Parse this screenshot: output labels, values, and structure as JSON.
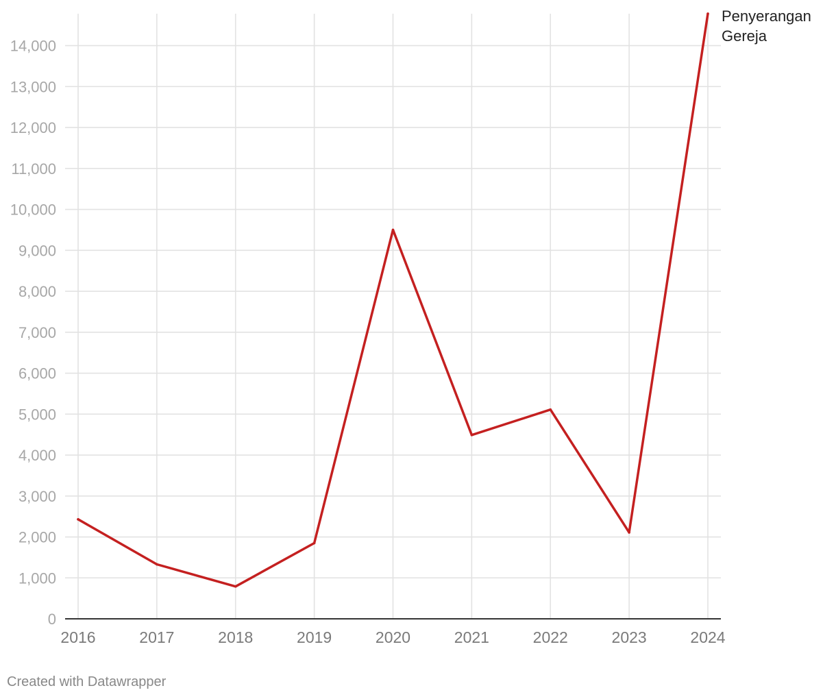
{
  "chart_data": {
    "type": "line",
    "title": "",
    "xlabel": "",
    "ylabel": "",
    "x": [
      "2016",
      "2017",
      "2018",
      "2019",
      "2020",
      "2021",
      "2022",
      "2023",
      "2024"
    ],
    "series": [
      {
        "name": "Penyerangan Gereja",
        "label_lines": [
          "Penyerangan",
          "Gereja"
        ],
        "color": "#c42020",
        "values": [
          2430,
          1330,
          790,
          1850,
          9500,
          4490,
          5110,
          2110,
          14780
        ]
      }
    ],
    "ylim": [
      0,
      14780
    ],
    "yticks": [
      0,
      1000,
      2000,
      3000,
      4000,
      5000,
      6000,
      7000,
      8000,
      9000,
      10000,
      11000,
      12000,
      13000,
      14000
    ],
    "ytick_labels": [
      "0",
      "1,000",
      "2,000",
      "3,000",
      "4,000",
      "5,000",
      "6,000",
      "7,000",
      "8,000",
      "9,000",
      "10,000",
      "11,000",
      "12,000",
      "13,000",
      "14,000"
    ],
    "grid": true,
    "legend": "direct label at line end"
  },
  "footer": {
    "credit": "Created with Datawrapper"
  }
}
